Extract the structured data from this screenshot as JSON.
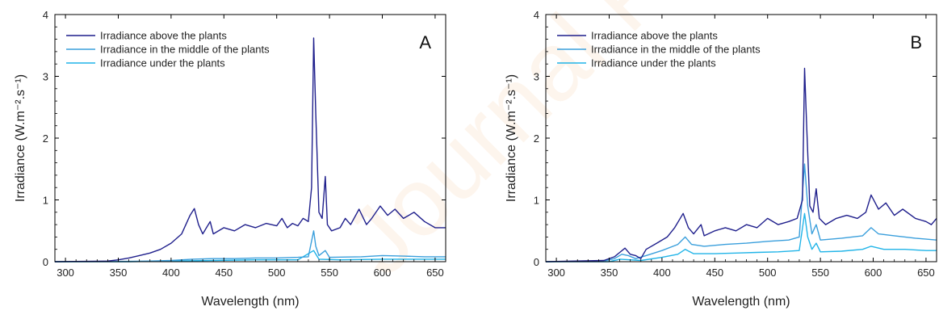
{
  "watermark": "Journal Pre-proof",
  "chart_data": [
    {
      "type": "line",
      "panel": "A",
      "xlabel": "Wavelength (nm)",
      "ylabel": "Irradiance (W.m⁻².s⁻¹)",
      "xlim": [
        290,
        660
      ],
      "ylim": [
        0,
        4
      ],
      "xticks": [
        300,
        350,
        400,
        450,
        500,
        550,
        600,
        650
      ],
      "yticks": [
        0,
        1,
        2,
        3,
        4
      ],
      "legend_position": "top-left",
      "series": [
        {
          "name": "Irradiance above the plants",
          "color": "#1f1f8c",
          "points": [
            [
              290,
              0
            ],
            [
              340,
              0.01
            ],
            [
              350,
              0.03
            ],
            [
              360,
              0.06
            ],
            [
              370,
              0.1
            ],
            [
              380,
              0.14
            ],
            [
              390,
              0.2
            ],
            [
              400,
              0.3
            ],
            [
              410,
              0.45
            ],
            [
              418,
              0.75
            ],
            [
              422,
              0.86
            ],
            [
              426,
              0.6
            ],
            [
              430,
              0.45
            ],
            [
              437,
              0.65
            ],
            [
              440,
              0.45
            ],
            [
              450,
              0.55
            ],
            [
              460,
              0.5
            ],
            [
              470,
              0.6
            ],
            [
              480,
              0.55
            ],
            [
              490,
              0.62
            ],
            [
              500,
              0.58
            ],
            [
              505,
              0.7
            ],
            [
              510,
              0.55
            ],
            [
              515,
              0.62
            ],
            [
              520,
              0.58
            ],
            [
              525,
              0.7
            ],
            [
              530,
              0.65
            ],
            [
              533,
              1.2
            ],
            [
              535,
              3.62
            ],
            [
              537,
              2.4
            ],
            [
              540,
              0.8
            ],
            [
              543,
              0.7
            ],
            [
              546,
              1.38
            ],
            [
              548,
              0.6
            ],
            [
              552,
              0.5
            ],
            [
              560,
              0.55
            ],
            [
              565,
              0.7
            ],
            [
              570,
              0.6
            ],
            [
              578,
              0.85
            ],
            [
              585,
              0.6
            ],
            [
              590,
              0.7
            ],
            [
              598,
              0.9
            ],
            [
              605,
              0.75
            ],
            [
              612,
              0.85
            ],
            [
              620,
              0.7
            ],
            [
              630,
              0.8
            ],
            [
              640,
              0.65
            ],
            [
              650,
              0.55
            ],
            [
              660,
              0.55
            ]
          ]
        },
        {
          "name": "Irradiance in the middle of the plants",
          "color": "#3a9fdc",
          "points": [
            [
              290,
              0
            ],
            [
              360,
              0.005
            ],
            [
              380,
              0.01
            ],
            [
              400,
              0.02
            ],
            [
              420,
              0.04
            ],
            [
              440,
              0.05
            ],
            [
              460,
              0.05
            ],
            [
              480,
              0.06
            ],
            [
              500,
              0.06
            ],
            [
              520,
              0.07
            ],
            [
              530,
              0.08
            ],
            [
              535,
              0.5
            ],
            [
              537,
              0.25
            ],
            [
              540,
              0.1
            ],
            [
              546,
              0.18
            ],
            [
              550,
              0.07
            ],
            [
              580,
              0.08
            ],
            [
              600,
              0.1
            ],
            [
              620,
              0.09
            ],
            [
              640,
              0.08
            ],
            [
              660,
              0.08
            ]
          ]
        },
        {
          "name": "Irradiance under the plants",
          "color": "#20b4e8",
          "points": [
            [
              290,
              0
            ],
            [
              360,
              0
            ],
            [
              400,
              0.01
            ],
            [
              440,
              0.02
            ],
            [
              480,
              0.03
            ],
            [
              520,
              0.03
            ],
            [
              535,
              0.18
            ],
            [
              540,
              0.04
            ],
            [
              560,
              0.03
            ],
            [
              600,
              0.04
            ],
            [
              660,
              0.04
            ]
          ]
        }
      ]
    },
    {
      "type": "line",
      "panel": "B",
      "xlabel": "Wavelength (nm)",
      "ylabel": "Irradiance (W.m⁻².s⁻¹)",
      "xlim": [
        290,
        660
      ],
      "ylim": [
        0,
        4
      ],
      "xticks": [
        300,
        350,
        400,
        450,
        500,
        550,
        600,
        650
      ],
      "yticks": [
        0,
        1,
        2,
        3,
        4
      ],
      "legend_position": "top-left",
      "series": [
        {
          "name": "Irradiance above the plants",
          "color": "#1f1f8c",
          "points": [
            [
              290,
              0
            ],
            [
              345,
              0.02
            ],
            [
              355,
              0.08
            ],
            [
              360,
              0.15
            ],
            [
              365,
              0.22
            ],
            [
              370,
              0.12
            ],
            [
              375,
              0.1
            ],
            [
              380,
              0.05
            ],
            [
              385,
              0.2
            ],
            [
              395,
              0.3
            ],
            [
              405,
              0.4
            ],
            [
              412,
              0.55
            ],
            [
              420,
              0.78
            ],
            [
              425,
              0.55
            ],
            [
              430,
              0.45
            ],
            [
              437,
              0.6
            ],
            [
              440,
              0.42
            ],
            [
              450,
              0.5
            ],
            [
              460,
              0.55
            ],
            [
              470,
              0.5
            ],
            [
              480,
              0.6
            ],
            [
              490,
              0.55
            ],
            [
              500,
              0.7
            ],
            [
              510,
              0.6
            ],
            [
              520,
              0.65
            ],
            [
              528,
              0.7
            ],
            [
              533,
              1.0
            ],
            [
              535,
              3.13
            ],
            [
              537,
              2.2
            ],
            [
              540,
              0.9
            ],
            [
              543,
              0.8
            ],
            [
              546,
              1.18
            ],
            [
              549,
              0.7
            ],
            [
              555,
              0.6
            ],
            [
              565,
              0.7
            ],
            [
              575,
              0.75
            ],
            [
              585,
              0.7
            ],
            [
              593,
              0.8
            ],
            [
              598,
              1.08
            ],
            [
              605,
              0.85
            ],
            [
              612,
              0.95
            ],
            [
              620,
              0.75
            ],
            [
              628,
              0.85
            ],
            [
              640,
              0.7
            ],
            [
              650,
              0.65
            ],
            [
              655,
              0.6
            ],
            [
              660,
              0.7
            ]
          ]
        },
        {
          "name": "Irradiance in the middle of the plants",
          "color": "#3a9fdc",
          "points": [
            [
              290,
              0
            ],
            [
              345,
              0.01
            ],
            [
              355,
              0.05
            ],
            [
              362,
              0.12
            ],
            [
              368,
              0.1
            ],
            [
              375,
              0.05
            ],
            [
              385,
              0.1
            ],
            [
              400,
              0.18
            ],
            [
              415,
              0.28
            ],
            [
              422,
              0.4
            ],
            [
              428,
              0.28
            ],
            [
              440,
              0.25
            ],
            [
              460,
              0.28
            ],
            [
              480,
              0.3
            ],
            [
              500,
              0.33
            ],
            [
              520,
              0.35
            ],
            [
              530,
              0.4
            ],
            [
              535,
              1.58
            ],
            [
              538,
              0.9
            ],
            [
              542,
              0.45
            ],
            [
              546,
              0.6
            ],
            [
              550,
              0.35
            ],
            [
              570,
              0.38
            ],
            [
              590,
              0.42
            ],
            [
              598,
              0.55
            ],
            [
              605,
              0.45
            ],
            [
              620,
              0.42
            ],
            [
              640,
              0.38
            ],
            [
              660,
              0.35
            ]
          ]
        },
        {
          "name": "Irradiance under the plants",
          "color": "#20b4e8",
          "points": [
            [
              290,
              0
            ],
            [
              350,
              0
            ],
            [
              360,
              0.04
            ],
            [
              370,
              0.03
            ],
            [
              380,
              0.02
            ],
            [
              400,
              0.07
            ],
            [
              415,
              0.12
            ],
            [
              422,
              0.2
            ],
            [
              430,
              0.13
            ],
            [
              450,
              0.13
            ],
            [
              470,
              0.14
            ],
            [
              490,
              0.15
            ],
            [
              510,
              0.16
            ],
            [
              530,
              0.18
            ],
            [
              535,
              0.78
            ],
            [
              538,
              0.4
            ],
            [
              542,
              0.2
            ],
            [
              546,
              0.3
            ],
            [
              550,
              0.16
            ],
            [
              570,
              0.17
            ],
            [
              590,
              0.2
            ],
            [
              598,
              0.25
            ],
            [
              610,
              0.2
            ],
            [
              630,
              0.2
            ],
            [
              650,
              0.18
            ],
            [
              660,
              0.18
            ]
          ]
        }
      ]
    }
  ]
}
